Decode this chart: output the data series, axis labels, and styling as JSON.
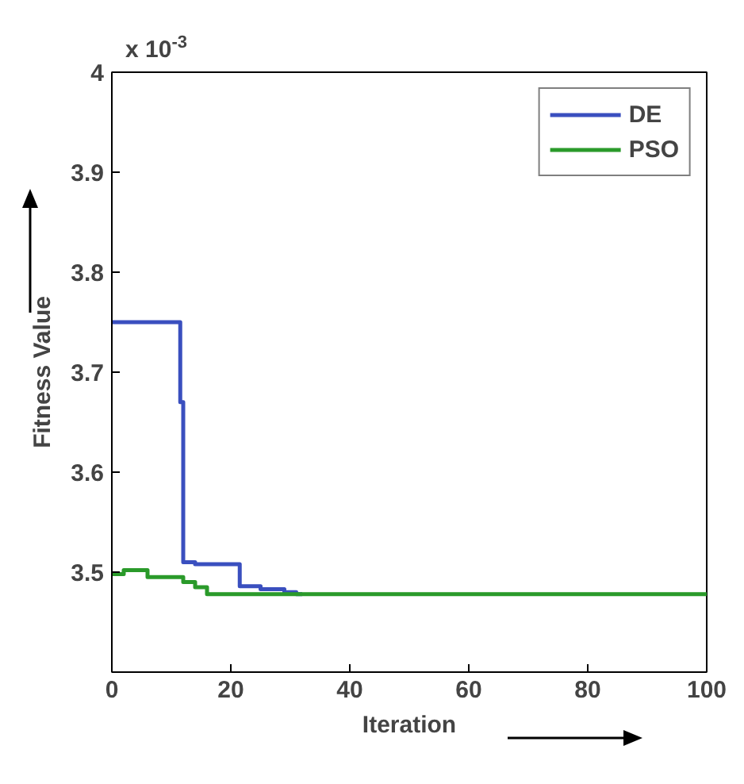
{
  "chart_data": {
    "type": "step",
    "xlabel": "Iteration",
    "ylabel": "Fitness Value",
    "annotations": [
      "x 10$^{-3}$"
    ],
    "xlim": [
      0,
      100
    ],
    "xticks": [
      0,
      20,
      40,
      60,
      80,
      100
    ],
    "ylim": [
      3.4,
      4.0
    ],
    "yticks": [
      3.5,
      3.6,
      3.7,
      3.8,
      3.9,
      4
    ],
    "grid": false,
    "legend": "top right",
    "line_style": "solid",
    "marker": "none",
    "series": [
      {
        "name": "DE",
        "color": "#3a4fbf",
        "x": [
          0,
          11,
          11.5,
          12,
          14,
          21,
          21.5,
          25,
          29,
          31,
          32
        ],
        "values": [
          3.75,
          3.75,
          3.67,
          3.51,
          3.508,
          3.508,
          3.486,
          3.483,
          3.48,
          3.478,
          3.478
        ]
      },
      {
        "name": "PSO",
        "color": "#2a9a2a",
        "x": [
          0,
          2,
          6,
          12,
          14,
          16,
          100
        ],
        "values": [
          3.498,
          3.502,
          3.495,
          3.49,
          3.485,
          3.478,
          3.478
        ]
      }
    ]
  }
}
